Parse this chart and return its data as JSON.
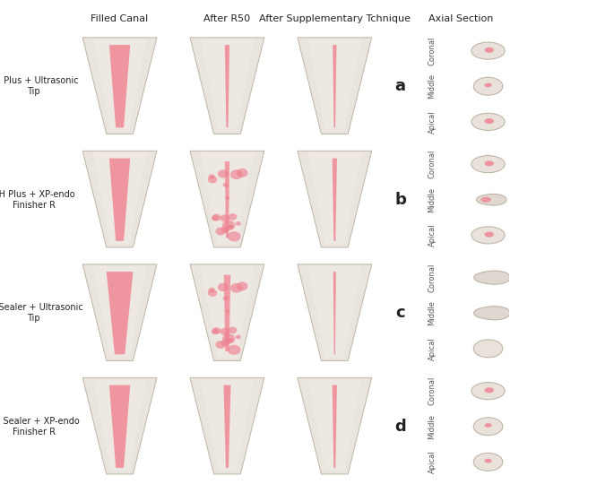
{
  "col_headers": [
    "Filled Canal",
    "After R50",
    "After Supplementary Tchnique",
    "Axial Section"
  ],
  "row_labels": [
    "AH Plus + Ultrasonic\nTip",
    "AH Plus + XP-endo\nFinisher R",
    "BC Sealer + Ultrasonic\nTip",
    "BC Sealer + XP-endo\nFinisher R"
  ],
  "panel_letters": [
    "a",
    "b",
    "c",
    "d"
  ],
  "axial_labels": [
    "Coronal",
    "Middle",
    "Apical"
  ],
  "bg_color": "#ffffff",
  "tooth_bg": "#e8e0d8",
  "tooth_outline": "#c8bfb0",
  "sealer_color": "#f08090",
  "text_color": "#222222",
  "label_color": "#555555",
  "header_fontsize": 8.0,
  "row_label_fontsize": 7.0,
  "panel_letter_fontsize": 13,
  "axial_label_fontsize": 6.0
}
